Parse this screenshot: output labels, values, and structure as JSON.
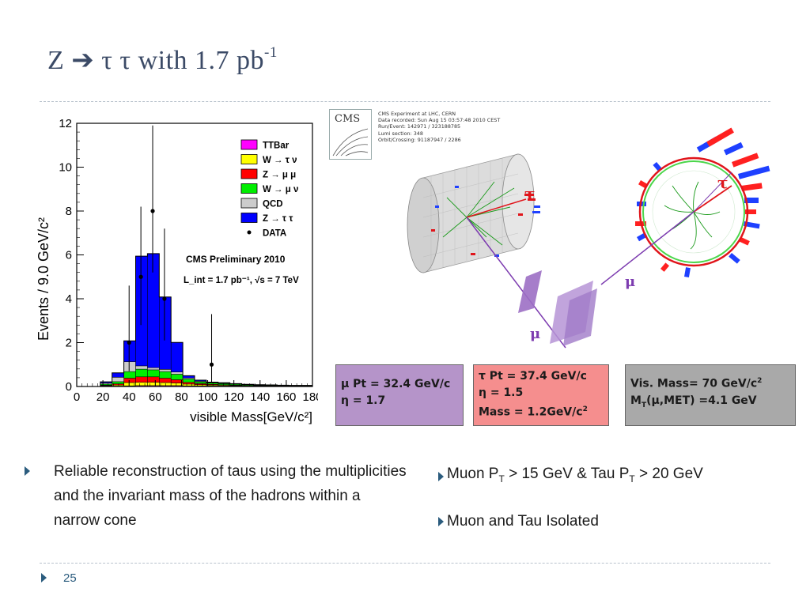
{
  "slide": {
    "title_main": "Z ➔ τ τ with 1.7 pb",
    "title_sup": "-1",
    "page_number": "25"
  },
  "chart_data": {
    "type": "bar",
    "stacked": true,
    "ylabel": "Events / 9.0 GeV/c²",
    "xlabel": "visible Mass[GeV/c²]",
    "xlim": [
      0,
      180
    ],
    "ylim": [
      0,
      12
    ],
    "x_ticks": [
      0,
      20,
      40,
      60,
      80,
      100,
      120,
      140,
      160,
      180
    ],
    "y_ticks": [
      0,
      2,
      4,
      6,
      8,
      10,
      12
    ],
    "bin_edges": [
      9,
      18,
      27,
      36,
      45,
      54,
      63,
      72,
      81,
      90,
      99,
      108,
      117,
      126,
      135,
      144,
      153,
      162,
      171,
      180
    ],
    "annotation_1": "CMS Preliminary 2010",
    "annotation_2": "L_int = 1.7 pb⁻¹, √s = 7 TeV",
    "legend_position": "top-right",
    "series": [
      {
        "name": "TTBar",
        "color": "#ff00ff",
        "values": [
          0,
          0.02,
          0.02,
          0.03,
          0.04,
          0.04,
          0.04,
          0.04,
          0.03,
          0.03,
          0.03,
          0.03,
          0.02,
          0.02,
          0.02,
          0.02,
          0.02,
          0.01,
          0.01
        ]
      },
      {
        "name": "W → τ ν",
        "color": "#ffff00",
        "values": [
          0,
          0.02,
          0.05,
          0.15,
          0.15,
          0.15,
          0.14,
          0.12,
          0.08,
          0.05,
          0.04,
          0.03,
          0.02,
          0.02,
          0.01,
          0.01,
          0.01,
          0.01,
          0.01
        ]
      },
      {
        "name": "Z → μ μ",
        "color": "#ff0000",
        "values": [
          0,
          0.02,
          0.05,
          0.2,
          0.25,
          0.25,
          0.2,
          0.15,
          0.08,
          0.05,
          0.03,
          0.02,
          0.02,
          0.01,
          0.01,
          0.01,
          0.01,
          0.01,
          0.01
        ]
      },
      {
        "name": "W → μ ν",
        "color": "#00ee00",
        "values": [
          0,
          0.05,
          0.1,
          0.3,
          0.35,
          0.32,
          0.3,
          0.25,
          0.15,
          0.08,
          0.06,
          0.05,
          0.04,
          0.03,
          0.02,
          0.02,
          0.01,
          0.01,
          0.01
        ]
      },
      {
        "name": "QCD",
        "color": "#cccccc",
        "values": [
          0,
          0.05,
          0.2,
          0.45,
          0.15,
          0.1,
          0.1,
          0.1,
          0.05,
          0.03,
          0.02,
          0.02,
          0.01,
          0.01,
          0.01,
          0.01,
          0.01,
          0.01,
          0.01
        ]
      },
      {
        "name": "Z → τ τ",
        "color": "#0000ff",
        "values": [
          0,
          0.05,
          0.2,
          0.95,
          5.0,
          5.2,
          3.3,
          1.35,
          0.1,
          0.05,
          0.02,
          0.02,
          0.02,
          0.01,
          0.01,
          0,
          0,
          0,
          0
        ]
      }
    ],
    "data": {
      "name": "DATA",
      "points": [
        {
          "x": 40,
          "y": 2,
          "err": [
            1.3,
            2.6
          ]
        },
        {
          "x": 49,
          "y": 5,
          "err": [
            2.2,
            3.2
          ]
        },
        {
          "x": 58,
          "y": 8,
          "err": [
            2.8,
            3.9
          ]
        },
        {
          "x": 67,
          "y": 4,
          "err": [
            1.9,
            3.2
          ]
        },
        {
          "x": 103,
          "y": 1,
          "err": [
            0.8,
            2.3
          ]
        }
      ]
    }
  },
  "event_display": {
    "logo": "CMS",
    "info_lines": [
      "CMS Experiment at LHC, CERN",
      "Data recorded: Sun Aug 15 03:57:48 2010 CEST",
      "Run/Event: 142971 / 323188785",
      "Lumi section: 348",
      "Orbit/Crossing: 91187947 / 2286"
    ],
    "labels": {
      "tau_left": "τ",
      "tau_right": "τ",
      "mu_left": "μ",
      "mu_right": "μ"
    },
    "colors": {
      "muon": "#7d3cb0",
      "tau": "#e0151b",
      "tracks": "#1a9a1a",
      "calo_red": "#ff2020",
      "calo_blue": "#1e40ff"
    }
  },
  "boxes": {
    "muon": {
      "line1": "μ Pt = 32.4 GeV/c",
      "line2": "η = 1.7",
      "color": "#b594c9"
    },
    "tau": {
      "line1": "τ Pt = 37.4 GeV/c",
      "line2": "η = 1.5",
      "line3_text": "Mass = 1.2GeV/c",
      "line3_sup": "2",
      "color": "#f58e8e"
    },
    "vis": {
      "line1_text": "Vis. Mass= 70 GeV/c",
      "line1_sup": "2",
      "line2_m": "M",
      "line2_sub": "T",
      "line2_rest": "(μ,MET) =4.1 GeV",
      "color": "#a9a9a9"
    }
  },
  "bullets": {
    "b1": "Reliable reconstruction of  taus using  the multiplicities and the invariant mass of the hadrons within a narrow cone",
    "b2_a": "Muon P",
    "b2_sub1": "T",
    "b2_b": " > 15 GeV  & Tau P",
    "b2_sub2": "T",
    "b2_c": " > 20 GeV",
    "b3": "Muon and Tau Isolated"
  }
}
